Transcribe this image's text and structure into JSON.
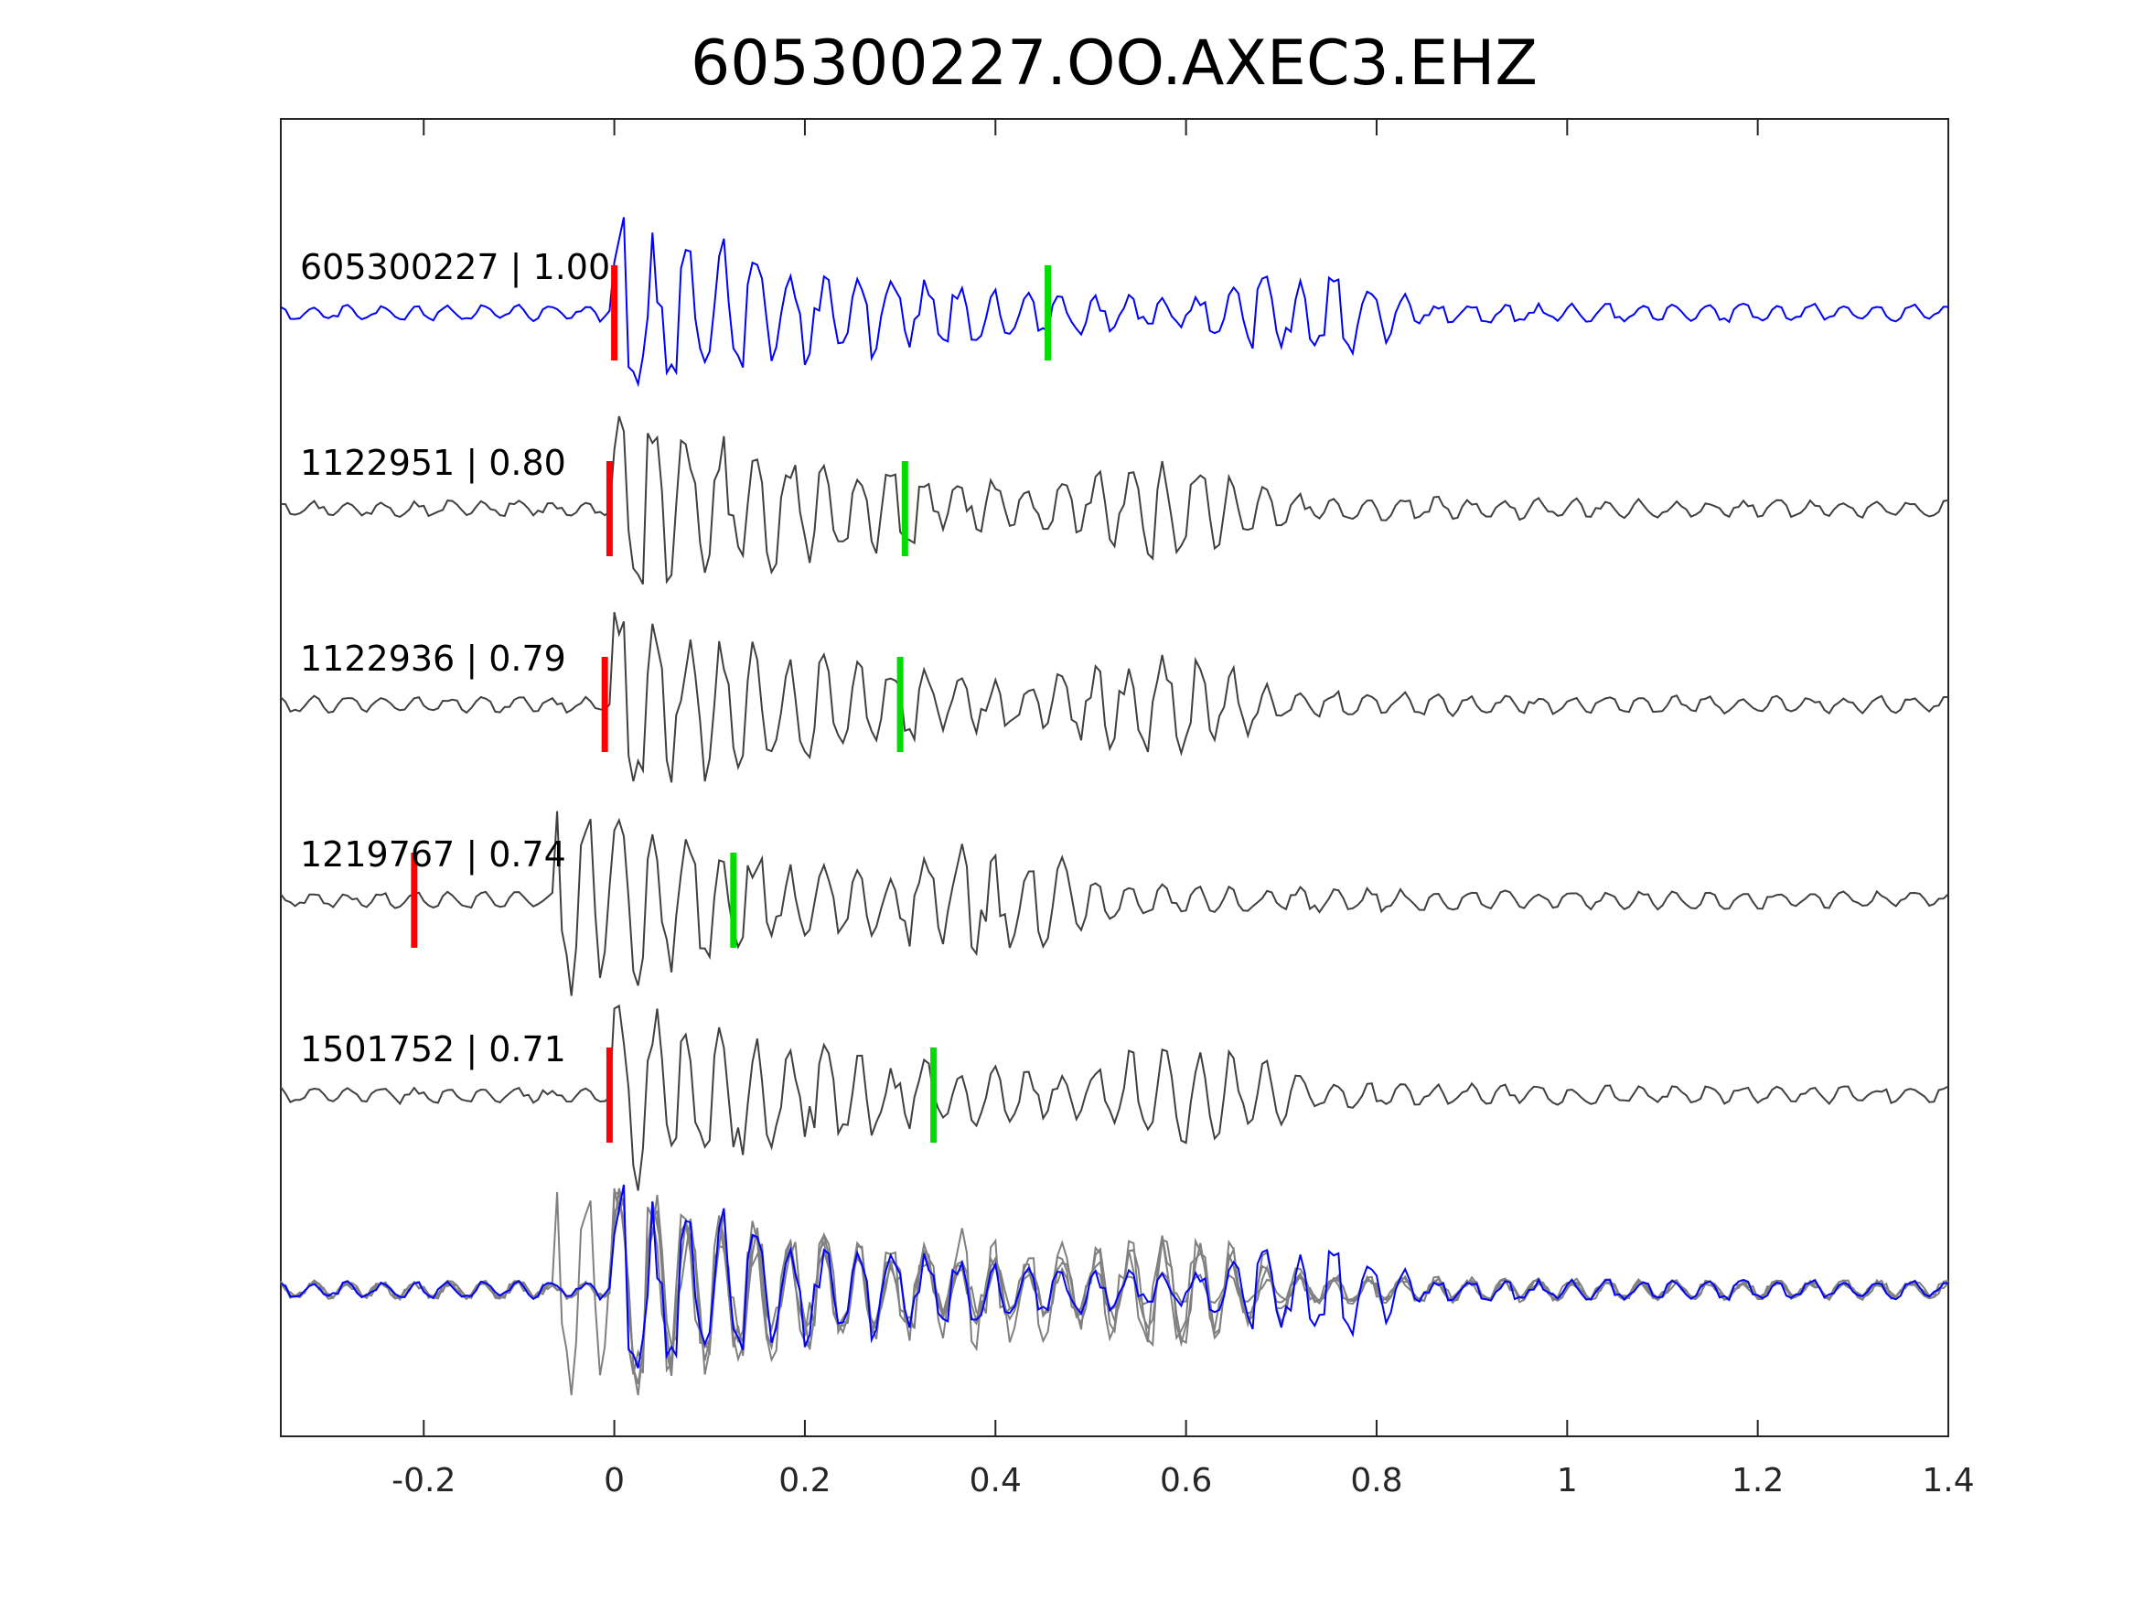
{
  "chart_data": {
    "type": "line",
    "title": "605300227.OO.AXEC3.EHZ",
    "xlabel": "",
    "ylabel": "",
    "xlim": [
      -0.35,
      1.4
    ],
    "xticks": [
      -0.2,
      0,
      0.2,
      0.4,
      0.6,
      0.8,
      1,
      1.2,
      1.4
    ],
    "xtick_labels": [
      "-0.2",
      "0",
      "0.2",
      "0.4",
      "0.6",
      "0.8",
      "1",
      "1.2",
      "1.4"
    ],
    "grid": false,
    "series": [
      {
        "name": "605300227",
        "label": "605300227 | 1.00",
        "correlation": 1.0,
        "color": "#0000ff",
        "p_pick": 0.0,
        "s_pick": 0.455
      },
      {
        "name": "1122951",
        "label": "1122951 | 0.80",
        "correlation": 0.8,
        "color": "#404040",
        "p_pick": -0.005,
        "s_pick": 0.305
      },
      {
        "name": "1122936",
        "label": "1122936 | 0.79",
        "correlation": 0.79,
        "color": "#404040",
        "p_pick": -0.01,
        "s_pick": 0.3
      },
      {
        "name": "1219767",
        "label": "1219767 | 0.74",
        "correlation": 0.74,
        "color": "#404040",
        "p_pick": -0.21,
        "s_pick": 0.125
      },
      {
        "name": "1501752",
        "label": "1501752 | 0.71",
        "correlation": 0.71,
        "color": "#404040",
        "p_pick": -0.005,
        "s_pick": 0.335
      }
    ],
    "stack_label": "overlay",
    "pick_colors": {
      "p": "#ff0000",
      "s": "#00dd00"
    },
    "overlay_color": "#808080"
  }
}
